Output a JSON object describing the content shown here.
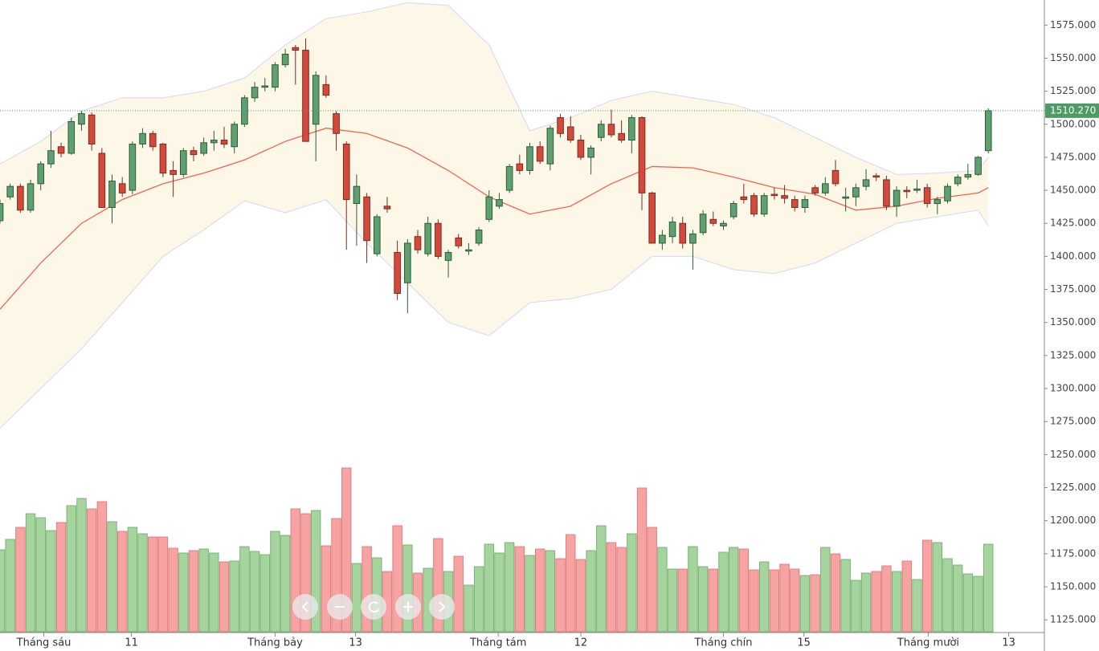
{
  "chart_data": {
    "type": "candlestick",
    "xlim": [
      0,
      102.5
    ],
    "ylim": [
      1116,
      1594
    ],
    "xticks": [
      {
        "value": 4.3,
        "label": "Tháng sáu"
      },
      {
        "value": 12.9,
        "label": "11"
      },
      {
        "value": 27,
        "label": "Tháng bảy"
      },
      {
        "value": 34.9,
        "label": "13"
      },
      {
        "value": 48.9,
        "label": "Tháng tám"
      },
      {
        "value": 57,
        "label": "12"
      },
      {
        "value": 71,
        "label": "Tháng chín"
      },
      {
        "value": 78.9,
        "label": "15"
      },
      {
        "value": 91.1,
        "label": "Tháng mười"
      },
      {
        "value": 99,
        "label": "13"
      }
    ],
    "yticks": [
      {
        "value": 1125,
        "label": "1125.000"
      },
      {
        "value": 1150,
        "label": "1150.000"
      },
      {
        "value": 1175,
        "label": "1175.000"
      },
      {
        "value": 1200,
        "label": "1200.000"
      },
      {
        "value": 1225,
        "label": "1225.000"
      },
      {
        "value": 1250,
        "label": "1250.000"
      },
      {
        "value": 1275,
        "label": "1275.000"
      },
      {
        "value": 1300,
        "label": "1300.000"
      },
      {
        "value": 1325,
        "label": "1325.000"
      },
      {
        "value": 1350,
        "label": "1350.000"
      },
      {
        "value": 1375,
        "label": "1375.000"
      },
      {
        "value": 1400,
        "label": "1400.000"
      },
      {
        "value": 1425,
        "label": "1425.000"
      },
      {
        "value": 1450,
        "label": "1450.000"
      },
      {
        "value": 1475,
        "label": "1475.000"
      },
      {
        "value": 1500,
        "label": "1500.000"
      },
      {
        "value": 1525,
        "label": "1525.000"
      },
      {
        "value": 1550,
        "label": "1550.000"
      },
      {
        "value": 1575,
        "label": "1575.000"
      }
    ],
    "last_price": {
      "value": 1510.27,
      "label": "1510.270",
      "color": "#4e9a64"
    },
    "up_color": "#5f9f70",
    "down_color": "#d24a3b",
    "volume_up_color": "#a6d49f",
    "volume_down_color": "#f5a3a3",
    "candles": [
      [
        1427,
        1443,
        1425,
        1440
      ],
      [
        1445,
        1455,
        1443,
        1453
      ],
      [
        1453,
        1455,
        1433,
        1435
      ],
      [
        1435,
        1458,
        1433,
        1455
      ],
      [
        1455,
        1472,
        1450,
        1470
      ],
      [
        1470,
        1495,
        1467,
        1480
      ],
      [
        1483,
        1486,
        1475,
        1478
      ],
      [
        1478,
        1505,
        1477,
        1502
      ],
      [
        1500,
        1510,
        1495,
        1508
      ],
      [
        1507,
        1509,
        1480,
        1485
      ],
      [
        1478,
        1482,
        1437,
        1437
      ],
      [
        1437,
        1462,
        1425,
        1457
      ],
      [
        1455,
        1460,
        1445,
        1448
      ],
      [
        1450,
        1487,
        1447,
        1485
      ],
      [
        1485,
        1497,
        1482,
        1493
      ],
      [
        1493,
        1495,
        1480,
        1483
      ],
      [
        1485,
        1486,
        1460,
        1463
      ],
      [
        1465,
        1472,
        1445,
        1462
      ],
      [
        1462,
        1482,
        1460,
        1480
      ],
      [
        1480,
        1483,
        1472,
        1477
      ],
      [
        1478,
        1490,
        1476,
        1486
      ],
      [
        1486,
        1495,
        1480,
        1488
      ],
      [
        1488,
        1498,
        1482,
        1485
      ],
      [
        1483,
        1502,
        1478,
        1500
      ],
      [
        1500,
        1522,
        1498,
        1520
      ],
      [
        1520,
        1532,
        1517,
        1528
      ],
      [
        1528,
        1535,
        1525,
        1529
      ],
      [
        1528,
        1547,
        1525,
        1545
      ],
      [
        1545,
        1557,
        1543,
        1553
      ],
      [
        1558,
        1560,
        1530,
        1556
      ],
      [
        1556,
        1565,
        1487,
        1487
      ],
      [
        1500,
        1540,
        1472,
        1537
      ],
      [
        1530,
        1537,
        1520,
        1522
      ],
      [
        1508,
        1510,
        1480,
        1493
      ],
      [
        1485,
        1487,
        1405,
        1443
      ],
      [
        1440,
        1462,
        1408,
        1453
      ],
      [
        1445,
        1448,
        1395,
        1412
      ],
      [
        1402,
        1432,
        1400,
        1430
      ],
      [
        1438,
        1445,
        1433,
        1436
      ],
      [
        1403,
        1412,
        1367,
        1372
      ],
      [
        1380,
        1413,
        1357,
        1410
      ],
      [
        1415,
        1420,
        1402,
        1405
      ],
      [
        1402,
        1430,
        1400,
        1425
      ],
      [
        1425,
        1428,
        1398,
        1400
      ],
      [
        1397,
        1405,
        1384,
        1403
      ],
      [
        1414,
        1417,
        1406,
        1408
      ],
      [
        1404,
        1410,
        1401,
        1405
      ],
      [
        1410,
        1422,
        1408,
        1420
      ],
      [
        1428,
        1450,
        1426,
        1445
      ],
      [
        1438,
        1448,
        1436,
        1443
      ],
      [
        1450,
        1470,
        1448,
        1468
      ],
      [
        1470,
        1477,
        1462,
        1465
      ],
      [
        1465,
        1486,
        1462,
        1483
      ],
      [
        1483,
        1487,
        1470,
        1472
      ],
      [
        1470,
        1499,
        1465,
        1497
      ],
      [
        1505,
        1508,
        1490,
        1493
      ],
      [
        1498,
        1506,
        1486,
        1488
      ],
      [
        1488,
        1492,
        1473,
        1475
      ],
      [
        1475,
        1484,
        1462,
        1482
      ],
      [
        1490,
        1503,
        1487,
        1500
      ],
      [
        1500,
        1511,
        1490,
        1492
      ],
      [
        1493,
        1503,
        1486,
        1488
      ],
      [
        1488,
        1507,
        1478,
        1505
      ],
      [
        1505,
        1506,
        1435,
        1448
      ],
      [
        1448,
        1449,
        1410,
        1410
      ],
      [
        1410,
        1420,
        1405,
        1416
      ],
      [
        1415,
        1430,
        1410,
        1426
      ],
      [
        1425,
        1430,
        1406,
        1410
      ],
      [
        1410,
        1420,
        1390,
        1417
      ],
      [
        1418,
        1435,
        1416,
        1432
      ],
      [
        1428,
        1434,
        1423,
        1425
      ],
      [
        1423,
        1427,
        1420,
        1425
      ],
      [
        1430,
        1442,
        1428,
        1440
      ],
      [
        1445,
        1455,
        1440,
        1443
      ],
      [
        1446,
        1448,
        1430,
        1432
      ],
      [
        1432,
        1448,
        1430,
        1446
      ],
      [
        1447,
        1452,
        1443,
        1446
      ],
      [
        1446,
        1454,
        1440,
        1444
      ],
      [
        1443,
        1446,
        1434,
        1437
      ],
      [
        1437,
        1446,
        1433,
        1443
      ],
      [
        1452,
        1454,
        1446,
        1448
      ],
      [
        1448,
        1460,
        1446,
        1455
      ],
      [
        1465,
        1473,
        1453,
        1455
      ],
      [
        1444,
        1452,
        1434,
        1445
      ],
      [
        1445,
        1455,
        1438,
        1452
      ],
      [
        1453,
        1466,
        1450,
        1458
      ],
      [
        1461,
        1463,
        1457,
        1460
      ],
      [
        1458,
        1461,
        1435,
        1438
      ],
      [
        1438,
        1453,
        1430,
        1450
      ],
      [
        1450,
        1453,
        1444,
        1449
      ],
      [
        1450,
        1458,
        1448,
        1451
      ],
      [
        1452,
        1455,
        1437,
        1440
      ],
      [
        1440,
        1445,
        1432,
        1443
      ],
      [
        1442,
        1455,
        1440,
        1453
      ],
      [
        1455,
        1462,
        1453,
        1460
      ],
      [
        1460,
        1470,
        1458,
        1462
      ],
      [
        1462,
        1476,
        1461,
        1475
      ],
      [
        1480,
        1512,
        1478,
        1510.27
      ]
    ],
    "volume_lim": [
      0,
      220
    ],
    "volume": [
      102,
      115,
      130,
      147,
      142,
      126,
      136,
      157,
      166,
      153,
      162,
      137,
      125,
      130,
      122,
      118,
      118,
      104,
      98,
      101,
      103,
      98,
      87,
      88,
      106,
      100,
      96,
      125,
      120,
      153,
      147,
      151,
      107,
      141,
      204,
      85,
      106,
      92,
      75,
      132,
      108,
      73,
      79,
      116,
      75,
      94,
      58,
      81,
      109,
      98,
      111,
      106,
      95,
      103,
      101,
      91,
      121,
      90,
      101,
      132,
      111,
      105,
      122,
      179,
      130,
      105,
      78,
      78,
      106,
      81,
      78,
      99,
      105,
      103,
      77,
      87,
      77,
      84,
      78,
      70,
      71,
      105,
      97,
      90,
      64,
      73,
      75,
      82,
      75,
      88,
      65,
      114,
      111,
      91,
      83,
      72,
      69,
      109
    ],
    "bands": {
      "x": [
        0,
        4,
        8,
        12,
        16,
        20,
        24,
        28,
        32,
        36,
        40,
        44,
        48,
        52,
        56,
        60,
        64,
        68,
        72,
        76,
        80,
        84,
        88,
        92,
        96,
        97
      ],
      "upper": [
        1470,
        1487,
        1510,
        1520,
        1520,
        1525,
        1535,
        1560,
        1580,
        1585,
        1592,
        1590,
        1560,
        1495,
        1505,
        1518,
        1525,
        1520,
        1515,
        1505,
        1490,
        1475,
        1462,
        1463,
        1465,
        1475
      ],
      "middle": [
        1360,
        1395,
        1425,
        1443,
        1455,
        1463,
        1473,
        1487,
        1497,
        1493,
        1482,
        1465,
        1445,
        1432,
        1438,
        1455,
        1468,
        1467,
        1460,
        1452,
        1447,
        1435,
        1438,
        1444,
        1448,
        1452
      ],
      "lower": [
        1270,
        1300,
        1330,
        1365,
        1400,
        1420,
        1442,
        1433,
        1443,
        1410,
        1380,
        1350,
        1340,
        1365,
        1368,
        1375,
        1400,
        1400,
        1390,
        1387,
        1395,
        1410,
        1425,
        1430,
        1435,
        1423
      ],
      "fill": "#fdf7e8",
      "edge_color": "#d8d6f0",
      "middle_color": "#f26452"
    }
  }
}
